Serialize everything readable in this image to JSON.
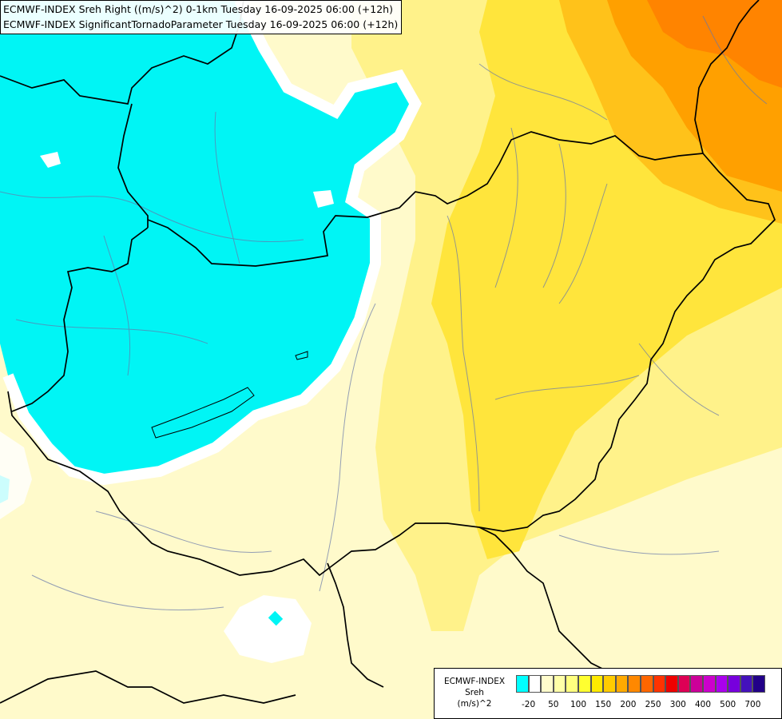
{
  "title": {
    "line1": "ECMWF-INDEX Sreh Right ((m/s)^2) 0-1km Tuesday 16-09-2025 06:00 (+12h)",
    "line2": "ECMWF-INDEX SignificantTornadoParameter Tuesday 16-09-2025 06:00 (+12h)"
  },
  "legend": {
    "title_line1": "ECMWF-INDEX",
    "title_line2": "Sreh",
    "title_line3": "(m/s)^2",
    "colors": [
      "#00ffff",
      "#ffffff",
      "#fffccc",
      "#ffffa8",
      "#ffff7f",
      "#ffff30",
      "#ffea00",
      "#ffcc00",
      "#ffaa00",
      "#ff8800",
      "#ff6600",
      "#ff3300",
      "#ee0000",
      "#dd0055",
      "#cc0099",
      "#cc00cc",
      "#aa00ee",
      "#7700dd",
      "#4411bb",
      "#220088"
    ],
    "ticks": [
      "-20",
      "50",
      "100",
      "150",
      "200",
      "250",
      "300",
      "400",
      "500",
      "700"
    ]
  }
}
